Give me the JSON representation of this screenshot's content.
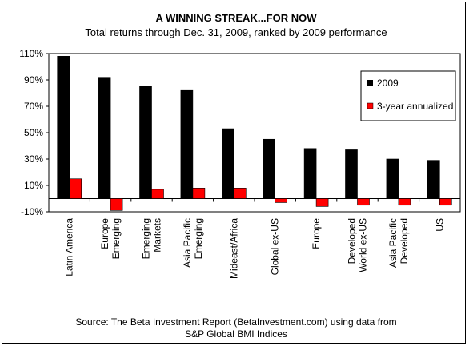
{
  "chart_data": {
    "type": "bar",
    "title": "A WINNING STREAK...FOR NOW",
    "subtitle": "Total returns through Dec. 31, 2009, ranked by 2009 performance",
    "categories": [
      "Latin America",
      "Europe Emerging",
      "Emerging Markets",
      "Asia Pacific Emerging",
      "Mideast/Africa",
      "Global ex-US",
      "Europe",
      "Developed World ex-US",
      "Asia Pacific Developed",
      "US"
    ],
    "category_lines": [
      [
        "Latin America"
      ],
      [
        "Europe",
        "Emerging"
      ],
      [
        "Emerging",
        "Markets"
      ],
      [
        "Asia Pacific",
        "Emerging"
      ],
      [
        "Mideast/Africa"
      ],
      [
        "Global ex-US"
      ],
      [
        "Europe"
      ],
      [
        "Developed",
        "World ex-US"
      ],
      [
        "Asia Pacific",
        "Developed"
      ],
      [
        "US"
      ]
    ],
    "series": [
      {
        "name": "2009",
        "color": "#000000",
        "values": [
          108,
          92,
          85,
          82,
          53,
          45,
          38,
          37,
          30,
          29
        ]
      },
      {
        "name": "3-year annualized",
        "color": "#ff0000",
        "values": [
          15,
          -9,
          7,
          8,
          8,
          -3,
          -6,
          -5,
          -5,
          -5
        ]
      }
    ],
    "ylim": [
      -10,
      110
    ],
    "yticks": [
      -10,
      10,
      30,
      50,
      70,
      90,
      110
    ],
    "ytick_labels": [
      "-10%",
      "10%",
      "30%",
      "50%",
      "70%",
      "90%",
      "110%"
    ],
    "grid": false,
    "legend": "right",
    "source_lines": [
      "Source: The Beta Investment Report (BetaInvestment.com) using data from",
      "S&P Global BMI Indices"
    ]
  }
}
